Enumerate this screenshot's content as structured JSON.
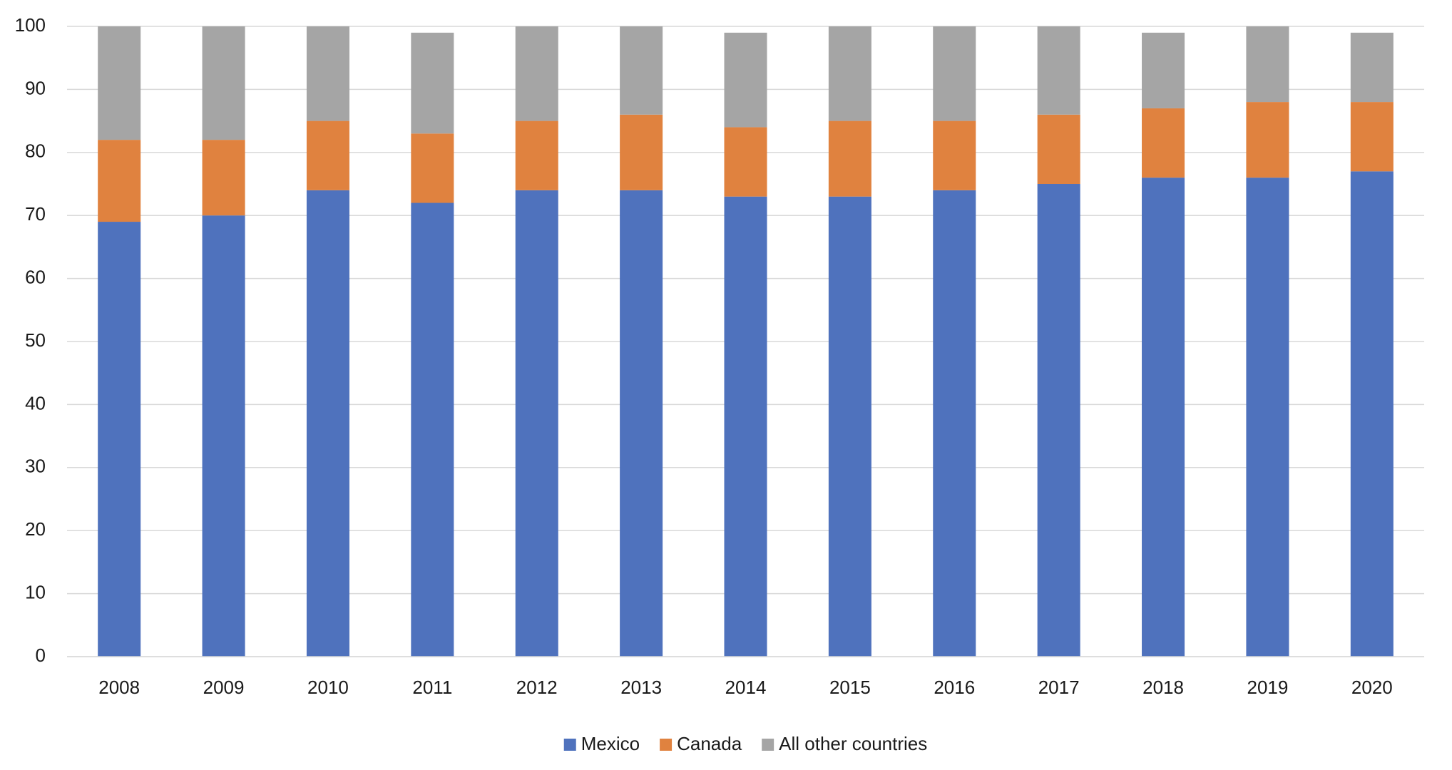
{
  "chart_data": {
    "type": "stacked_bar",
    "categories": [
      "2008",
      "2009",
      "2010",
      "2011",
      "2012",
      "2013",
      "2014",
      "2015",
      "2016",
      "2017",
      "2018",
      "2019",
      "2020"
    ],
    "series": [
      {
        "name": "Mexico",
        "color": "#4f72bd",
        "values": [
          69,
          70,
          74,
          72,
          74,
          74,
          73,
          73,
          74,
          75,
          76,
          76,
          77
        ]
      },
      {
        "name": "Canada",
        "color": "#e0823f",
        "values": [
          13,
          12,
          11,
          11,
          11,
          12,
          11,
          12,
          11,
          11,
          11,
          12,
          11
        ]
      },
      {
        "name": "All other countries",
        "color": "#a5a5a5",
        "values": [
          18,
          18,
          15,
          16,
          15,
          14,
          15,
          15,
          15,
          14,
          12,
          12,
          11
        ]
      }
    ],
    "ylim": [
      0,
      100
    ],
    "yticks": [
      0,
      10,
      20,
      30,
      40,
      50,
      60,
      70,
      80,
      90,
      100
    ],
    "grid": true,
    "legend": "bottom"
  }
}
